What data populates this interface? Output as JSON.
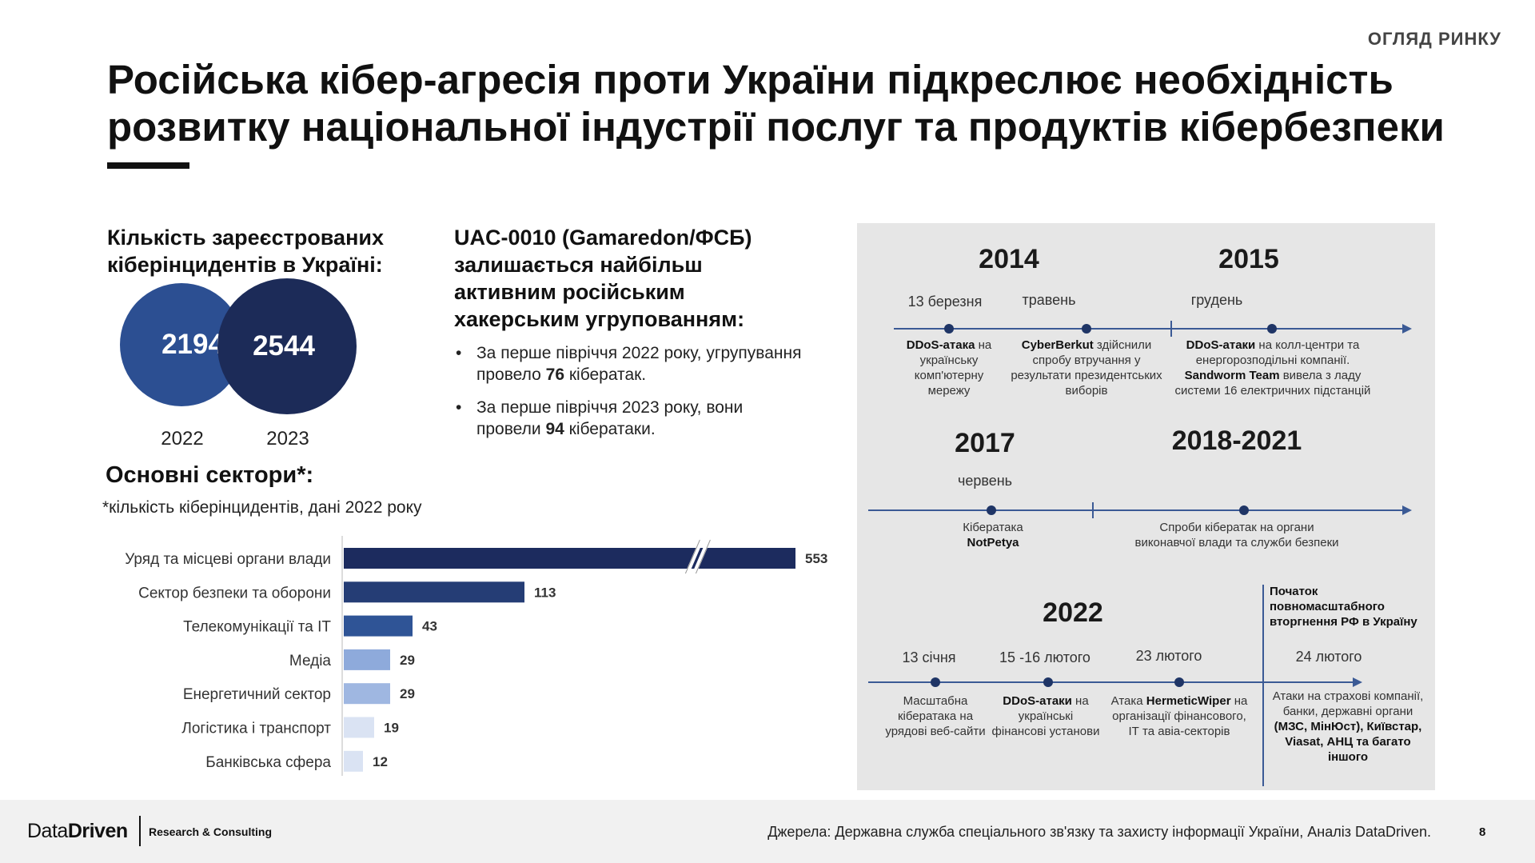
{
  "header": {
    "section_tag": "ОГЛЯД РИНКУ",
    "title": "Російська кібер-агресія проти України підкреслює необхідність розвитку національної індустрії послуг та продуктів кібербезпеки"
  },
  "incidents": {
    "heading": "Кількість зареєстрованих кіберінцидентів в Україні:",
    "circles": [
      {
        "year": "2022",
        "value": "2194"
      },
      {
        "year": "2023",
        "value": "2544"
      }
    ]
  },
  "uac": {
    "heading": "UAC-0010 (Gamaredon/ФСБ) залишається найбільш активним російським хакерським угрупованням:",
    "bullets": [
      {
        "before": "За перше півріччя 2022 року, угрупування провело ",
        "bold": "76",
        "after": " кібератак."
      },
      {
        "before": "За перше півріччя 2023 року, вони провели ",
        "bold": "94",
        "after": " кібератаки."
      }
    ]
  },
  "sectors": {
    "heading": "Основні сектори*:",
    "note": "*кількість кіберінцидентів, дані 2022 року"
  },
  "chart_data": {
    "type": "bar",
    "orientation": "horizontal",
    "categories": [
      "Уряд та місцеві органи влади",
      "Сектор безпеки та оборони",
      "Телекомунікації та ІТ",
      "Медіа",
      "Енергетичний сектор",
      "Логістика і транспорт",
      "Банківська сфера"
    ],
    "values": [
      553,
      113,
      43,
      29,
      29,
      19,
      12
    ],
    "colors": [
      "#1c2b5e",
      "#253d75",
      "#2f5496",
      "#8eaadb",
      "#9fb7e1",
      "#dae3f3",
      "#dae3f3"
    ],
    "axis_break_on_first_bar": true,
    "grid": false
  },
  "timeline": {
    "row1": {
      "years": [
        "2014",
        "2015"
      ],
      "events": [
        {
          "date": "13 березня",
          "bold": "DDoS-атака",
          "text": " на українську комп'ютерну мережу"
        },
        {
          "date": "травень",
          "bold": "CyberBerkut",
          "text": " здійснили спробу втручання у результати президентських виборів"
        },
        {
          "date": "грудень",
          "bold": "DDoS-атаки",
          "text": " на колл-центри та енергорозподільні компанії. ",
          "bold2": "Sandworm Team",
          "text2": " вивела з ладу системи 16 електричних підстанцій"
        }
      ]
    },
    "row2": {
      "years": [
        "2017",
        "2018-2021"
      ],
      "events": [
        {
          "date": "червень",
          "text": "Кібератака ",
          "bold": "NotPetya"
        },
        {
          "text": "Спроби кібератак на органи виконавчої влади та служби безпеки"
        }
      ]
    },
    "row3": {
      "year": "2022",
      "invasion_note": "Початок повномасштабного вторгнення РФ в Україну",
      "events": [
        {
          "date": "13 січня",
          "text": "Масштабна кібератака на урядові веб-сайти"
        },
        {
          "date": "15 -16 лютого",
          "bold": "DDoS-атаки",
          "text": " на українські фінансові установи"
        },
        {
          "date": "23 лютого",
          "pre": "Атака ",
          "bold": "HermeticWiper",
          "text": " на організації фінансового, ІТ та авіа-секторів"
        },
        {
          "date": "24 лютого",
          "text": "Атаки на страхові компанії, банки, державні органи ",
          "bold": "(МЗС, МінЮст), Київстар, Viasat, АНЦ та багато іншого"
        }
      ]
    }
  },
  "footer": {
    "brand_regular": "Data",
    "brand_bold": "Driven",
    "tagline": "Research & Consulting",
    "sources": "Джерела:  Державна служба спеціального зв'язку та захисту інформації України, Аналіз DataDriven.",
    "page_number": "8"
  }
}
